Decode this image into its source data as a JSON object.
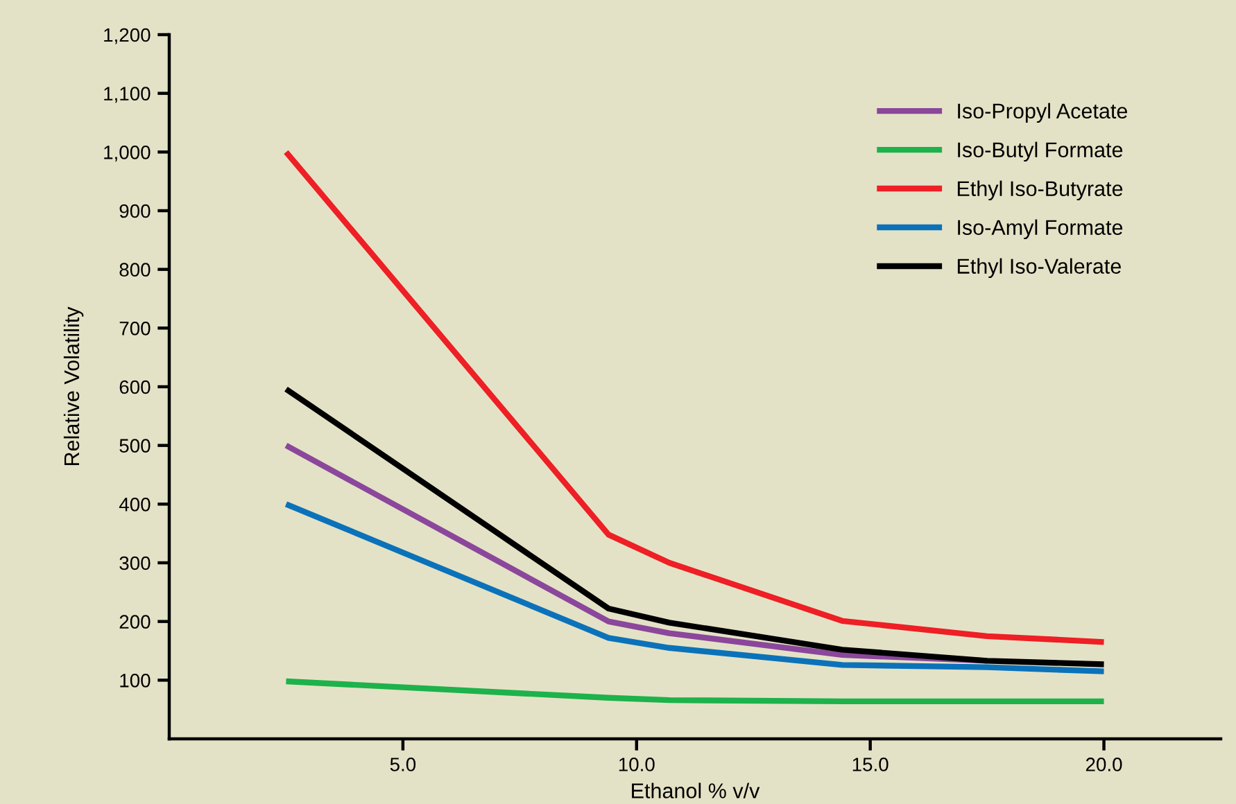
{
  "chart_data": {
    "type": "line",
    "xlabel": "Ethanol % v/v",
    "ylabel": "Relative Volatility",
    "xlim": [
      0,
      22.5
    ],
    "xticks": [
      {
        "value": 5,
        "label": "5.0"
      },
      {
        "value": 10,
        "label": "10.0"
      },
      {
        "value": 15,
        "label": "15.0"
      },
      {
        "value": 20,
        "label": "20.0"
      }
    ],
    "ylim": [
      0,
      1200
    ],
    "yticks": [
      {
        "value": 100,
        "label": "100"
      },
      {
        "value": 200,
        "label": "200"
      },
      {
        "value": 300,
        "label": "300"
      },
      {
        "value": 400,
        "label": "400"
      },
      {
        "value": 500,
        "label": "500"
      },
      {
        "value": 600,
        "label": "600"
      },
      {
        "value": 700,
        "label": "700"
      },
      {
        "value": 800,
        "label": "800"
      },
      {
        "value": 900,
        "label": "900"
      },
      {
        "value": 1000,
        "label": "1,000"
      },
      {
        "value": 1100,
        "label": "1,100"
      },
      {
        "value": 1200,
        "label": "1,200"
      }
    ],
    "grid": false,
    "legend": "top right",
    "marker": "none",
    "line_style": "solid",
    "x": [
      2.5,
      9.4,
      10.7,
      14.4,
      17.5,
      20.0
    ],
    "series": [
      {
        "name": "Iso-Propyl Acetate",
        "color": "#8b479b",
        "values": [
          500,
          200,
          180,
          143,
          133,
          null
        ]
      },
      {
        "name": "Iso-Butyl Formate",
        "color": "#1db24b",
        "values": [
          98,
          70,
          66,
          64,
          64,
          64
        ]
      },
      {
        "name": "Ethyl Iso-Butyrate",
        "color": "#ee1f25",
        "values": [
          1000,
          348,
          300,
          201,
          175,
          165
        ]
      },
      {
        "name": "Iso-Amyl Formate",
        "color": "#0b72ba",
        "values": [
          400,
          172,
          155,
          126,
          122,
          115
        ]
      },
      {
        "name": "Ethyl Iso-Valerate",
        "color": "#000000",
        "values": [
          596,
          222,
          198,
          152,
          133,
          127
        ]
      }
    ]
  }
}
